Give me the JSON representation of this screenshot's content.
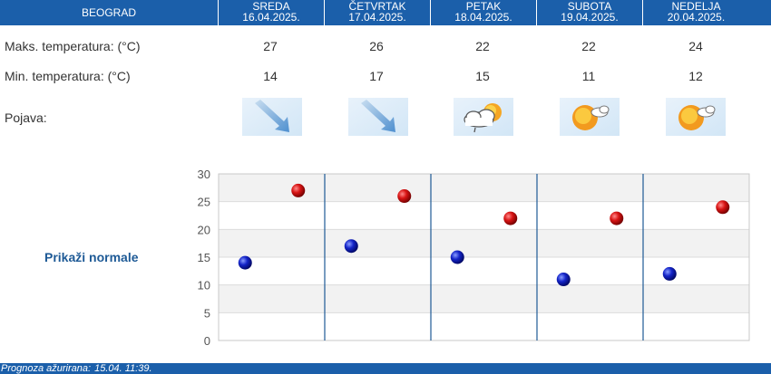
{
  "header": {
    "city": "BEOGRAD",
    "days": [
      {
        "day": "SREDA",
        "date": "16.04.2025."
      },
      {
        "day": "ČETVRTAK",
        "date": "17.04.2025."
      },
      {
        "day": "PETAK",
        "date": "18.04.2025."
      },
      {
        "day": "SUBOTA",
        "date": "19.04.2025."
      },
      {
        "day": "NEDELJA",
        "date": "20.04.2025."
      }
    ]
  },
  "rows": {
    "max_label": "Maks. temperatura: (°C)",
    "min_label": "Min. temperatura: (°C)",
    "phen_label": "Pojava:",
    "max": [
      "27",
      "26",
      "22",
      "22",
      "24"
    ],
    "min": [
      "14",
      "17",
      "15",
      "11",
      "12"
    ],
    "icons": [
      "wind-arrow-icon",
      "wind-arrow-icon",
      "cloud-sun-rain-icon",
      "sun-cloud-icon",
      "sun-cloud-icon"
    ]
  },
  "normals_link": "Prikaži normale",
  "footer": {
    "label": "Prognoza ažurirana:",
    "timestamp": "15.04. 11:39."
  },
  "chart_data": {
    "type": "scatter",
    "categories": [
      "16.04.2025.",
      "17.04.2025.",
      "18.04.2025.",
      "19.04.2025.",
      "20.04.2025."
    ],
    "ylim": [
      0,
      30
    ],
    "yticks": [
      "0",
      "5",
      "10",
      "15",
      "20",
      "25",
      "30"
    ],
    "grid": true,
    "series": [
      {
        "name": "",
        "color": "#0a1aa8",
        "values": [
          14,
          17,
          15,
          11,
          12
        ]
      },
      {
        "name": "",
        "color": "#c40d0d",
        "values": [
          27,
          26,
          22,
          22,
          24
        ]
      }
    ]
  },
  "colors": {
    "header_bg": "#1b5faa",
    "link": "#1e5a96",
    "max_dot": "#c40d0d",
    "min_dot": "#0a1aa8"
  }
}
